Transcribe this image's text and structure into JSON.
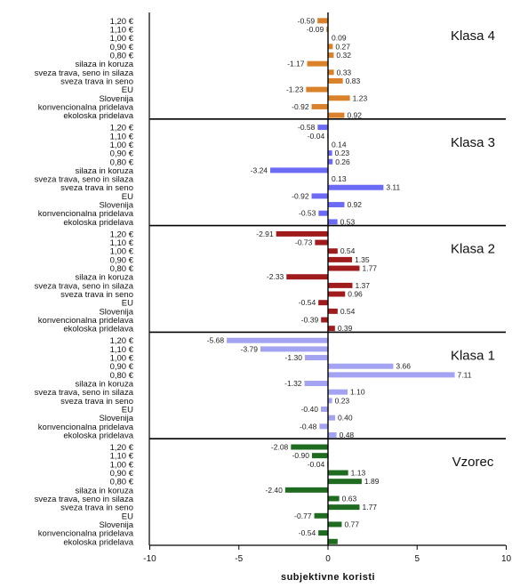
{
  "chart_data": {
    "type": "bar",
    "orientation": "horizontal",
    "xlabel": "subjektivne koristi",
    "xlim": [
      -10,
      10
    ],
    "xticks": [
      -10,
      -5,
      0,
      5,
      10
    ],
    "grid": false,
    "legend": "none",
    "categories": [
      "1,20 €",
      "1,10 €",
      "1,00 €",
      "0,90 €",
      "0,80 €",
      "silaza in koruza",
      "sveza trava, seno in silaza",
      "sveza trava in seno",
      "EU",
      "Slovenija",
      "konvencionalna pridelava",
      "ekoloska pridelava"
    ],
    "panels": [
      {
        "name": "Klasa 4",
        "color": "#d9822b",
        "values": [
          -0.59,
          -0.09,
          0,
          0.27,
          0.32,
          -1.17,
          0.33,
          0.83,
          -1.23,
          1.23,
          -0.92,
          0.92
        ],
        "labels": [
          "-0.59",
          "-0.09",
          "0.09",
          "0.27",
          "0.32",
          "-1.17",
          "0.33",
          "0.83",
          "-1.23",
          "1.23",
          "-0.92",
          "0.92"
        ]
      },
      {
        "name": "Klasa 3",
        "color": "#6b6bf5",
        "values": [
          -0.58,
          -0.04,
          0,
          0.23,
          0.26,
          -3.24,
          0,
          3.11,
          -0.92,
          0.92,
          -0.53,
          0.53
        ],
        "labels": [
          "-0.58",
          "-0.04",
          "0.14",
          "0.23",
          "0.26",
          "-3.24",
          "0.13",
          "3.11",
          "-0.92",
          "0.92",
          "-0.53",
          "0.53"
        ]
      },
      {
        "name": "Klasa 2",
        "color": "#a01c1c",
        "values": [
          -2.91,
          -0.73,
          0.54,
          1.35,
          1.77,
          -2.33,
          1.37,
          0.96,
          -0.54,
          0.54,
          -0.39,
          0.39
        ],
        "labels": [
          "-2.91",
          "-0.73",
          "0.54",
          "1.35",
          "1.77",
          "-2.33",
          "1.37",
          "0.96",
          "-0.54",
          "0.54",
          "-0.39",
          "0.39"
        ]
      },
      {
        "name": "Klasa 1",
        "color": "#a3a3f2",
        "values": [
          -5.68,
          -3.79,
          -1.3,
          3.66,
          7.11,
          -1.32,
          1.1,
          0.23,
          -0.4,
          0.4,
          -0.48,
          0.48
        ],
        "labels": [
          "-5.68",
          "-3.79",
          "-1.30",
          "3.66",
          "7.11",
          "-1.32",
          "1.10",
          "0.23",
          "-0.40",
          "0.40",
          "-0.48",
          "0.48"
        ]
      },
      {
        "name": "Vzorec",
        "color": "#1f6b1f",
        "values": [
          -2.08,
          -0.9,
          -0.04,
          1.13,
          1.89,
          -2.4,
          0.63,
          1.77,
          -0.77,
          0.77,
          -0.54,
          0.54
        ],
        "labels": [
          "-2.08",
          "-0.90",
          "-0.04",
          "1.13",
          "1.89",
          "-2.40",
          "0.63",
          "1.77",
          "-0.77",
          "0.77",
          "-0.54",
          ""
        ]
      }
    ]
  }
}
